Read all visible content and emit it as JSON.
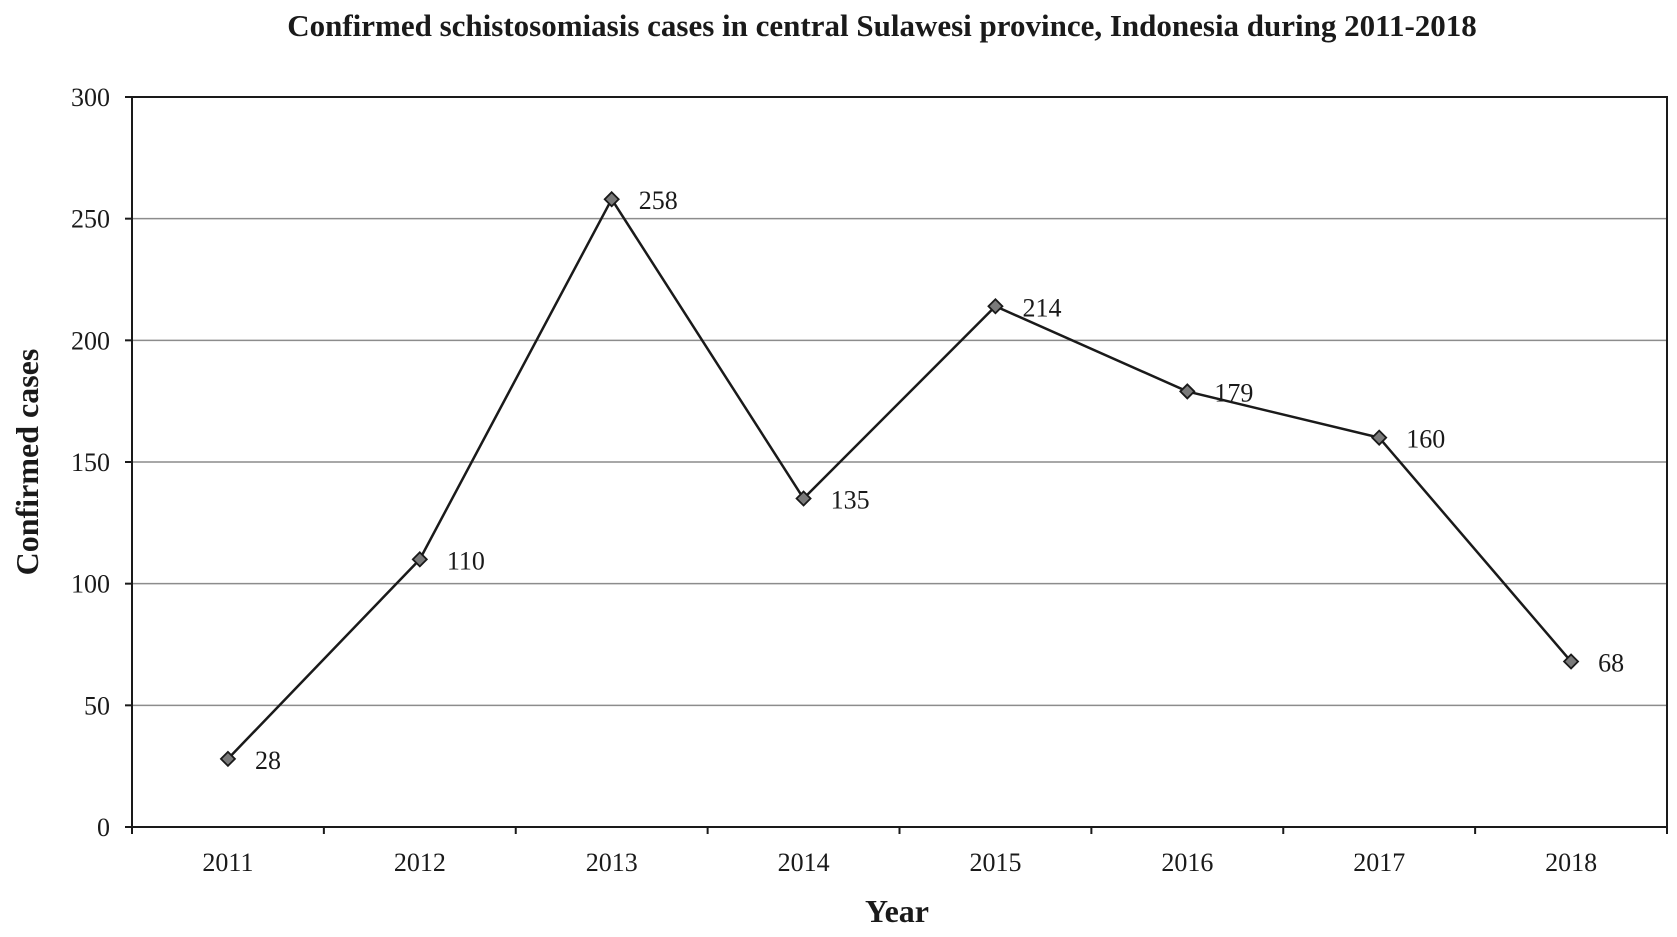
{
  "chart_data": {
    "type": "line",
    "title": "Confirmed schistosomiasis cases in central Sulawesi province, Indonesia during 2011-2018",
    "xlabel": "Year",
    "ylabel": "Confirmed cases",
    "categories": [
      "2011",
      "2012",
      "2013",
      "2014",
      "2015",
      "2016",
      "2017",
      "2018"
    ],
    "values": [
      28,
      110,
      258,
      135,
      214,
      179,
      160,
      68
    ],
    "data_labels": [
      "28",
      "110",
      "258",
      "135",
      "214",
      "179",
      "160",
      "68"
    ],
    "ylim": [
      0,
      300
    ],
    "yticks": [
      0,
      50,
      100,
      150,
      200,
      250,
      300
    ],
    "ytick_labels": [
      "0",
      "50",
      "100",
      "150",
      "200",
      "250",
      "300"
    ],
    "grid": "horizontal",
    "legend": "none",
    "marker": "diamond",
    "colors": {
      "line": "#1a1a1a",
      "marker_fill": "#7a7a7a",
      "grid": "#8c8c8c",
      "axis": "#1a1a1a"
    }
  }
}
